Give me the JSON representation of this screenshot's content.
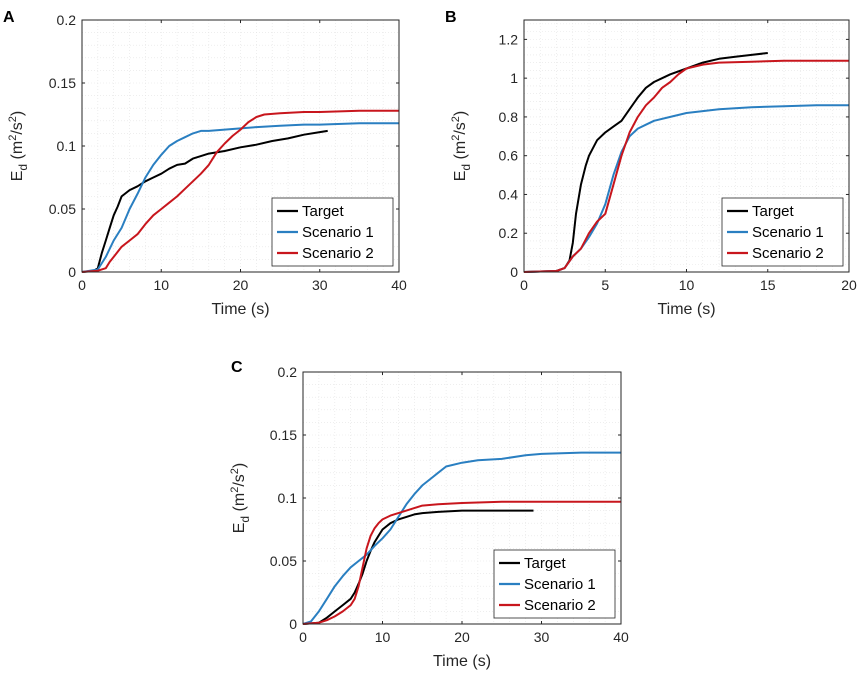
{
  "colors": {
    "target": "#000000",
    "scenario1": "#2a7fc1",
    "scenario2": "#c8161d",
    "grid": "#e3e3e3",
    "axis": "#262626"
  },
  "chart_data": [
    {
      "panel": "A",
      "type": "line",
      "xlabel": "Time (s)",
      "ylabel_main": "E",
      "ylabel_sub": "d",
      "ylabel_units": [
        "(m",
        "2",
        "/s",
        "2",
        ")"
      ],
      "xlim": [
        0,
        40
      ],
      "ylim": [
        0,
        0.2
      ],
      "xticks": [
        0,
        10,
        20,
        30,
        40
      ],
      "xtick_labels": [
        "0",
        "10",
        "20",
        "30",
        "40"
      ],
      "yticks": [
        0,
        0.05,
        0.1,
        0.15,
        0.2
      ],
      "ytick_labels": [
        "0",
        "0.05",
        "0.1",
        "0.15",
        "0.2"
      ],
      "legend_position": "bottom-right",
      "series": [
        {
          "name": "Target",
          "color_key": "target",
          "x": [
            0,
            1.5,
            2,
            2.5,
            3,
            3.5,
            4,
            4.5,
            5,
            6,
            7,
            8,
            9,
            10,
            11,
            12,
            13,
            14,
            15,
            16,
            18,
            20,
            22,
            24,
            26,
            28,
            30,
            31
          ],
          "y": [
            0,
            0.001,
            0.003,
            0.015,
            0.025,
            0.035,
            0.045,
            0.052,
            0.06,
            0.065,
            0.068,
            0.072,
            0.075,
            0.078,
            0.082,
            0.085,
            0.086,
            0.09,
            0.092,
            0.094,
            0.096,
            0.099,
            0.101,
            0.104,
            0.106,
            0.109,
            0.111,
            0.112
          ]
        },
        {
          "name": "Scenario 1",
          "color_key": "scenario1",
          "x": [
            0,
            2,
            3,
            4,
            5,
            6,
            7,
            8,
            9,
            10,
            11,
            12,
            13,
            14,
            15,
            16,
            18,
            20,
            22,
            25,
            28,
            30,
            35,
            40
          ],
          "y": [
            0,
            0.002,
            0.012,
            0.025,
            0.035,
            0.05,
            0.062,
            0.075,
            0.085,
            0.093,
            0.1,
            0.104,
            0.107,
            0.11,
            0.112,
            0.112,
            0.113,
            0.114,
            0.115,
            0.116,
            0.117,
            0.117,
            0.118,
            0.118
          ]
        },
        {
          "name": "Scenario 2",
          "color_key": "scenario2",
          "x": [
            0,
            2,
            3,
            3.5,
            4,
            5,
            6,
            7,
            8,
            9,
            10,
            11,
            12,
            13,
            14,
            15,
            16,
            17,
            18,
            19,
            20,
            21,
            22,
            23,
            25,
            28,
            30,
            35,
            40
          ],
          "y": [
            0,
            0.001,
            0.003,
            0.008,
            0.012,
            0.02,
            0.025,
            0.03,
            0.038,
            0.045,
            0.05,
            0.055,
            0.06,
            0.066,
            0.072,
            0.078,
            0.085,
            0.095,
            0.102,
            0.108,
            0.113,
            0.119,
            0.123,
            0.125,
            0.126,
            0.127,
            0.127,
            0.128,
            0.128
          ]
        }
      ],
      "legend": [
        "Target",
        "Scenario 1",
        "Scenario 2"
      ]
    },
    {
      "panel": "B",
      "type": "line",
      "xlabel": "Time (s)",
      "ylabel_main": "E",
      "ylabel_sub": "d",
      "ylabel_units": [
        "(m",
        "2",
        "/s",
        "2",
        ")"
      ],
      "xlim": [
        0,
        20
      ],
      "ylim": [
        0,
        1.3
      ],
      "xticks": [
        0,
        5,
        10,
        15,
        20
      ],
      "xtick_labels": [
        "0",
        "5",
        "10",
        "15",
        "20"
      ],
      "yticks": [
        0,
        0.2,
        0.4,
        0.6,
        0.8,
        1,
        1.2
      ],
      "ytick_labels": [
        "0",
        "0.2",
        "0.4",
        "0.6",
        "0.8",
        "1",
        "1.2"
      ],
      "legend_position": "bottom-right",
      "series": [
        {
          "name": "Target",
          "color_key": "target",
          "x": [
            0,
            2,
            2.5,
            2.8,
            3,
            3.2,
            3.5,
            3.8,
            4,
            4.5,
            5,
            5.5,
            6,
            6.5,
            7,
            7.5,
            8,
            8.5,
            9,
            10,
            11,
            12,
            13,
            14,
            15
          ],
          "y": [
            0,
            0.005,
            0.02,
            0.06,
            0.15,
            0.3,
            0.45,
            0.55,
            0.6,
            0.68,
            0.72,
            0.75,
            0.78,
            0.84,
            0.9,
            0.95,
            0.98,
            1.0,
            1.02,
            1.05,
            1.08,
            1.1,
            1.11,
            1.12,
            1.13
          ]
        },
        {
          "name": "Scenario 1",
          "color_key": "scenario1",
          "x": [
            0,
            2,
            2.5,
            3,
            3.5,
            4,
            4.5,
            5,
            5.5,
            6,
            6.5,
            7,
            7.5,
            8,
            9,
            10,
            11,
            12,
            14,
            16,
            18,
            20
          ],
          "y": [
            0,
            0.005,
            0.02,
            0.08,
            0.12,
            0.18,
            0.25,
            0.35,
            0.5,
            0.62,
            0.7,
            0.74,
            0.76,
            0.78,
            0.8,
            0.82,
            0.83,
            0.84,
            0.85,
            0.855,
            0.86,
            0.86
          ]
        },
        {
          "name": "Scenario 2",
          "color_key": "scenario2",
          "x": [
            0,
            2,
            2.5,
            3,
            3.5,
            4,
            4.5,
            5,
            5.5,
            6,
            6.5,
            7,
            7.5,
            8,
            8.5,
            9,
            9.5,
            10,
            11,
            12,
            14,
            16,
            18,
            20
          ],
          "y": [
            0,
            0.005,
            0.02,
            0.08,
            0.12,
            0.2,
            0.26,
            0.3,
            0.45,
            0.6,
            0.72,
            0.8,
            0.86,
            0.9,
            0.95,
            0.98,
            1.02,
            1.05,
            1.07,
            1.08,
            1.085,
            1.09,
            1.09,
            1.09
          ]
        }
      ],
      "legend": [
        "Target",
        "Scenario 1",
        "Scenario 2"
      ]
    },
    {
      "panel": "C",
      "type": "line",
      "xlabel": "Time (s)",
      "ylabel_main": "E",
      "ylabel_sub": "d",
      "ylabel_units": [
        "(m",
        "2",
        "/s",
        "2",
        ")"
      ],
      "xlim": [
        0,
        40
      ],
      "ylim": [
        0,
        0.2
      ],
      "xticks": [
        0,
        10,
        20,
        30,
        40
      ],
      "xtick_labels": [
        "0",
        "10",
        "20",
        "30",
        "40"
      ],
      "yticks": [
        0,
        0.05,
        0.1,
        0.15,
        0.2
      ],
      "ytick_labels": [
        "0",
        "0.05",
        "0.1",
        "0.15",
        "0.2"
      ],
      "legend_position": "bottom-right",
      "series": [
        {
          "name": "Target",
          "color_key": "target",
          "x": [
            0,
            2,
            3,
            4,
            5,
            6,
            6.5,
            7,
            7.5,
            8,
            8.5,
            9,
            9.5,
            10,
            11,
            12,
            13,
            14,
            15,
            17,
            20,
            25,
            29
          ],
          "y": [
            0,
            0.001,
            0.005,
            0.01,
            0.015,
            0.02,
            0.025,
            0.032,
            0.04,
            0.05,
            0.058,
            0.065,
            0.07,
            0.075,
            0.08,
            0.083,
            0.085,
            0.087,
            0.088,
            0.089,
            0.09,
            0.09,
            0.09
          ]
        },
        {
          "name": "Scenario 1",
          "color_key": "scenario1",
          "x": [
            0,
            1,
            2,
            3,
            4,
            5,
            6,
            7,
            8,
            9,
            10,
            11,
            12,
            13,
            14,
            15,
            16,
            17,
            18,
            20,
            22,
            25,
            28,
            30,
            35,
            40
          ],
          "y": [
            0,
            0.002,
            0.01,
            0.02,
            0.03,
            0.038,
            0.045,
            0.05,
            0.055,
            0.062,
            0.068,
            0.075,
            0.085,
            0.095,
            0.103,
            0.11,
            0.115,
            0.12,
            0.125,
            0.128,
            0.13,
            0.131,
            0.134,
            0.135,
            0.136,
            0.136
          ]
        },
        {
          "name": "Scenario 2",
          "color_key": "scenario2",
          "x": [
            0,
            2,
            3,
            4,
            5,
            6,
            6.5,
            7,
            7.5,
            8,
            8.5,
            9,
            9.5,
            10,
            11,
            12,
            13,
            14,
            15,
            17,
            20,
            25,
            30,
            35,
            40
          ],
          "y": [
            0,
            0.001,
            0.003,
            0.006,
            0.01,
            0.015,
            0.02,
            0.03,
            0.045,
            0.06,
            0.07,
            0.076,
            0.08,
            0.083,
            0.086,
            0.088,
            0.09,
            0.092,
            0.094,
            0.095,
            0.096,
            0.097,
            0.097,
            0.097,
            0.097
          ]
        }
      ],
      "legend": [
        "Target",
        "Scenario 1",
        "Scenario 2"
      ]
    }
  ]
}
